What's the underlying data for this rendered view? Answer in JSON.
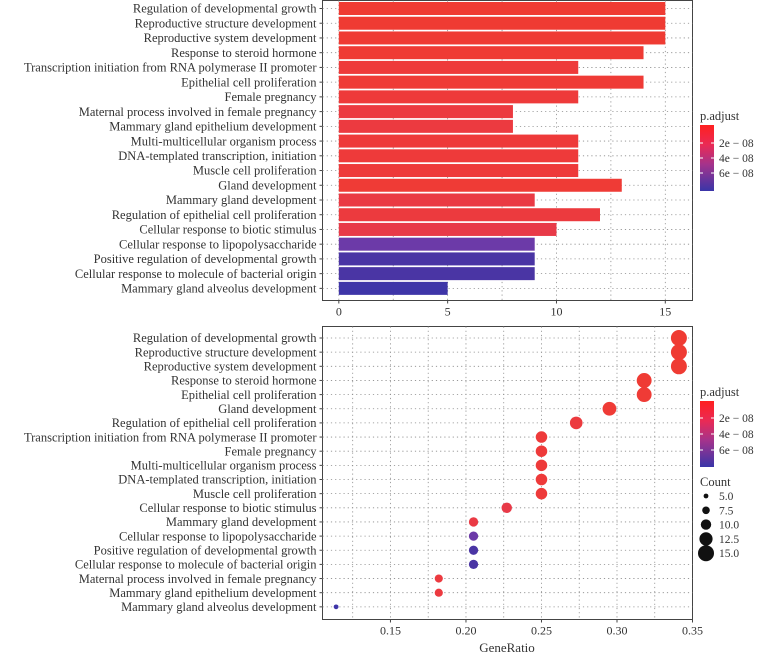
{
  "chart_data": [
    {
      "type": "bar",
      "title": "",
      "xlabel": "",
      "ylabel": "",
      "xlim": [
        -0.75,
        16.25
      ],
      "x_ticks": [
        "0",
        "5",
        "10",
        "15"
      ],
      "categories": [
        "Regulation of developmental growth",
        "Reproductive structure development",
        "Reproductive system development",
        "Response to steroid hormone",
        "Transcription initiation from RNA polymerase II promoter",
        "Epithelial cell proliferation",
        "Female pregnancy",
        "Maternal process involved in female pregnancy",
        "Mammary gland epithelium development",
        "Multi-multicellular organism process",
        "DNA-templated transcription, initiation",
        "Muscle cell proliferation",
        "Gland development",
        "Mammary gland development",
        "Regulation of epithelial cell proliferation",
        "Cellular response to biotic stimulus",
        "Cellular response to lipopolysaccharide",
        "Positive regulation of developmental growth",
        "Cellular response to molecule of bacterial origin",
        "Mammary gland alveolus development"
      ],
      "values": [
        15,
        15,
        15,
        14,
        11,
        14,
        11,
        8,
        8,
        11,
        11,
        11,
        13,
        9,
        12,
        10,
        9,
        9,
        9,
        5
      ],
      "colors": [
        "#ef3b33",
        "#ef3b33",
        "#ef3b33",
        "#ef3b34",
        "#ee3a3a",
        "#ef3b36",
        "#ee3a3a",
        "#ec3a40",
        "#ec3a40",
        "#ee3a3a",
        "#ee3a3a",
        "#ee3a3a",
        "#ef3b36",
        "#ea3a44",
        "#ec3a3e",
        "#e83a48",
        "#6c3aa8",
        "#4a35a4",
        "#4a35a4",
        "#3e35a8"
      ],
      "legend": {
        "title": "p.adjust",
        "ticks": [
          "2e − 08",
          "4e − 08",
          "6e − 08"
        ],
        "position": "right"
      }
    },
    {
      "type": "scatter",
      "title": "",
      "xlabel": "GeneRatio",
      "ylabel": "",
      "xlim": [
        0.105,
        0.35
      ],
      "x_ticks": [
        "0.15",
        "0.20",
        "0.25",
        "0.30",
        "0.35"
      ],
      "categories": [
        "Regulation of developmental growth",
        "Reproductive structure development",
        "Reproductive system development",
        "Response to steroid hormone",
        "Epithelial cell proliferation",
        "Gland development",
        "Regulation of epithelial cell proliferation",
        "Transcription initiation from RNA polymerase II promoter",
        "Female pregnancy",
        "Multi-multicellular organism process",
        "DNA-templated transcription, initiation",
        "Muscle cell proliferation",
        "Cellular response to biotic stimulus",
        "Mammary gland development",
        "Cellular response to lipopolysaccharide",
        "Positive regulation of developmental growth",
        "Cellular response to molecule of bacterial origin",
        "Maternal process involved in female pregnancy",
        "Mammary gland epithelium development",
        "Mammary gland alveolus development"
      ],
      "gene_ratio": [
        0.341,
        0.341,
        0.341,
        0.318,
        0.318,
        0.295,
        0.273,
        0.25,
        0.25,
        0.25,
        0.25,
        0.25,
        0.227,
        0.205,
        0.205,
        0.205,
        0.205,
        0.182,
        0.182,
        0.114
      ],
      "count": [
        15,
        15,
        15,
        14,
        14,
        13,
        12,
        11,
        11,
        11,
        11,
        11,
        10,
        9,
        9,
        9,
        9,
        8,
        8,
        5
      ],
      "colors": [
        "#ef3b33",
        "#ef3b33",
        "#ef3b33",
        "#ef3b34",
        "#ef3b36",
        "#ef3b36",
        "#ec3a3e",
        "#ee3a3a",
        "#ee3a3a",
        "#ee3a3a",
        "#ee3a3a",
        "#ee3a3a",
        "#e83a48",
        "#ea3a44",
        "#6c3aa8",
        "#4a35a4",
        "#4a35a4",
        "#ec3a40",
        "#ec3a40",
        "#3e35a8"
      ],
      "legend": {
        "title": "p.adjust",
        "ticks": [
          "2e − 08",
          "4e − 08",
          "6e − 08"
        ],
        "size_title": "Count",
        "size_values": [
          5.0,
          7.5,
          10.0,
          12.5,
          15.0
        ],
        "size_labels": [
          "5.0",
          "7.5",
          "10.0",
          "12.5",
          "15.0"
        ],
        "position": "right"
      }
    }
  ]
}
